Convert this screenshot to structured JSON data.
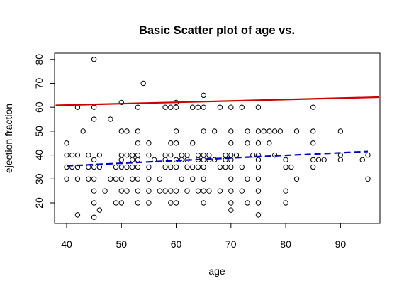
{
  "chart_data": {
    "type": "scatter",
    "title": "Basic Scatter plot of age vs.",
    "xlabel": "age",
    "ylabel": "ejection fraction",
    "xlim": [
      37.8,
      97.2
    ],
    "ylim": [
      11.4,
      82.6
    ],
    "x_ticks": [
      40,
      50,
      60,
      70,
      80,
      90
    ],
    "y_ticks": [
      20,
      30,
      40,
      50,
      60,
      70,
      80
    ],
    "grid": false,
    "legend": "none",
    "colors": {
      "points": "#000000",
      "upper_line": "#cc0000",
      "lower_line": "#0000cc"
    },
    "upper_line": {
      "x": [
        38,
        97
      ],
      "y": [
        60.8,
        64.2
      ]
    },
    "lower_line": {
      "x": [
        40,
        95
      ],
      "y": [
        35.5,
        41.5
      ]
    },
    "points": [
      [
        40,
        45
      ],
      [
        40,
        40
      ],
      [
        40,
        35
      ],
      [
        40,
        30
      ],
      [
        41,
        40
      ],
      [
        41,
        35
      ],
      [
        42,
        60
      ],
      [
        42,
        40
      ],
      [
        42,
        35
      ],
      [
        42,
        30
      ],
      [
        42,
        15
      ],
      [
        43,
        50
      ],
      [
        44,
        40
      ],
      [
        44,
        35
      ],
      [
        44,
        30
      ],
      [
        45,
        80
      ],
      [
        45,
        60
      ],
      [
        45,
        55
      ],
      [
        45,
        38
      ],
      [
        45,
        35
      ],
      [
        45,
        30
      ],
      [
        45,
        25
      ],
      [
        45,
        20
      ],
      [
        45,
        14
      ],
      [
        46,
        40
      ],
      [
        46,
        35
      ],
      [
        46,
        17
      ],
      [
        47,
        25
      ],
      [
        48,
        55
      ],
      [
        48,
        30
      ],
      [
        49,
        35
      ],
      [
        49,
        30
      ],
      [
        49,
        20
      ],
      [
        50,
        62
      ],
      [
        50,
        50
      ],
      [
        50,
        40
      ],
      [
        50,
        38
      ],
      [
        50,
        35
      ],
      [
        50,
        30
      ],
      [
        50,
        25
      ],
      [
        50,
        20
      ],
      [
        51,
        50
      ],
      [
        51,
        40
      ],
      [
        51,
        35
      ],
      [
        51,
        25
      ],
      [
        52,
        40
      ],
      [
        52,
        38
      ],
      [
        52,
        35
      ],
      [
        52,
        30
      ],
      [
        53,
        60
      ],
      [
        53,
        50
      ],
      [
        53,
        45
      ],
      [
        53,
        40
      ],
      [
        53,
        38
      ],
      [
        53,
        35
      ],
      [
        53,
        30
      ],
      [
        53,
        25
      ],
      [
        53,
        20
      ],
      [
        54,
        70
      ],
      [
        55,
        45
      ],
      [
        55,
        40
      ],
      [
        55,
        35
      ],
      [
        55,
        30
      ],
      [
        55,
        25
      ],
      [
        55,
        20
      ],
      [
        56,
        38
      ],
      [
        57,
        30
      ],
      [
        57,
        25
      ],
      [
        58,
        60
      ],
      [
        58,
        40
      ],
      [
        58,
        38
      ],
      [
        58,
        35
      ],
      [
        58,
        25
      ],
      [
        59,
        60
      ],
      [
        59,
        45
      ],
      [
        59,
        40
      ],
      [
        59,
        35
      ],
      [
        59,
        25
      ],
      [
        59,
        20
      ],
      [
        60,
        62
      ],
      [
        60,
        60
      ],
      [
        60,
        50
      ],
      [
        60,
        45
      ],
      [
        60,
        38
      ],
      [
        60,
        35
      ],
      [
        60,
        25
      ],
      [
        60,
        20
      ],
      [
        61,
        40
      ],
      [
        61,
        38
      ],
      [
        61,
        30
      ],
      [
        62,
        40
      ],
      [
        62,
        38
      ],
      [
        62,
        35
      ],
      [
        62,
        25
      ],
      [
        63,
        60
      ],
      [
        63,
        45
      ],
      [
        63,
        35
      ],
      [
        63,
        30
      ],
      [
        64,
        60
      ],
      [
        64,
        40
      ],
      [
        64,
        38
      ],
      [
        64,
        35
      ],
      [
        64,
        25
      ],
      [
        65,
        65
      ],
      [
        65,
        60
      ],
      [
        65,
        50
      ],
      [
        65,
        40
      ],
      [
        65,
        38
      ],
      [
        65,
        35
      ],
      [
        65,
        30
      ],
      [
        65,
        25
      ],
      [
        65,
        20
      ],
      [
        66,
        40
      ],
      [
        66,
        38
      ],
      [
        66,
        25
      ],
      [
        67,
        50
      ],
      [
        67,
        38
      ],
      [
        68,
        60
      ],
      [
        68,
        35
      ],
      [
        68,
        25
      ],
      [
        69,
        40
      ],
      [
        69,
        38
      ],
      [
        69,
        35
      ],
      [
        70,
        60
      ],
      [
        70,
        50
      ],
      [
        70,
        45
      ],
      [
        70,
        40
      ],
      [
        70,
        38
      ],
      [
        70,
        35
      ],
      [
        70,
        30
      ],
      [
        70,
        25
      ],
      [
        70,
        20
      ],
      [
        70,
        17
      ],
      [
        71,
        40
      ],
      [
        72,
        60
      ],
      [
        72,
        35
      ],
      [
        72,
        25
      ],
      [
        73,
        50
      ],
      [
        73,
        45
      ],
      [
        73,
        30
      ],
      [
        73,
        20
      ],
      [
        74,
        40
      ],
      [
        75,
        60
      ],
      [
        75,
        50
      ],
      [
        75,
        45
      ],
      [
        75,
        40
      ],
      [
        75,
        38
      ],
      [
        75,
        35
      ],
      [
        75,
        30
      ],
      [
        75,
        25
      ],
      [
        75,
        20
      ],
      [
        75,
        15
      ],
      [
        76,
        50
      ],
      [
        77,
        50
      ],
      [
        77,
        45
      ],
      [
        78,
        50
      ],
      [
        78,
        40
      ],
      [
        79,
        50
      ],
      [
        80,
        38
      ],
      [
        80,
        35
      ],
      [
        80,
        25
      ],
      [
        80,
        20
      ],
      [
        81,
        35
      ],
      [
        82,
        50
      ],
      [
        82,
        30
      ],
      [
        85,
        60
      ],
      [
        85,
        50
      ],
      [
        85,
        45
      ],
      [
        85,
        38
      ],
      [
        85,
        35
      ],
      [
        86,
        38
      ],
      [
        87,
        38
      ],
      [
        90,
        50
      ],
      [
        90,
        40
      ],
      [
        90,
        38
      ],
      [
        94,
        38
      ],
      [
        95,
        40
      ],
      [
        95,
        30
      ]
    ]
  }
}
